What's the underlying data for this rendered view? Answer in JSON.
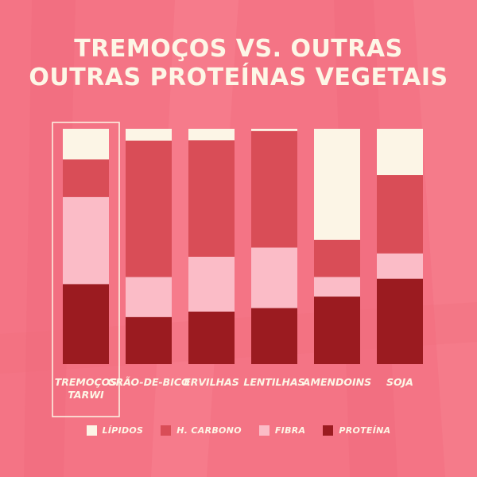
{
  "title": {
    "line1": "TREMOÇOS VS. OUTRAS",
    "line2": "OUTRAS PROTEÍNAS VEGETAIS"
  },
  "colors": {
    "background": "#f47485",
    "lipidos": "#fcf5e6",
    "h_carbono": "#d94d57",
    "fibra": "#fbbcc7",
    "proteina": "#9b1b20",
    "text": "#fdf6e6"
  },
  "legend": [
    {
      "key": "lipidos",
      "label": "LÍPIDOS",
      "color": "#fcf5e6"
    },
    {
      "key": "h_carbono",
      "label": "H. CARBONO",
      "color": "#d94d57"
    },
    {
      "key": "fibra",
      "label": "FIBRA",
      "color": "#fbbcc7"
    },
    {
      "key": "proteina",
      "label": "PROTEÍNA",
      "color": "#9b1b20"
    }
  ],
  "chart_data": {
    "type": "bar",
    "stacked": true,
    "normalized": true,
    "title": "TREMOÇOS VS. OUTRAS OUTRAS PROTEÍNAS VEGETAIS",
    "categories": [
      [
        "TREMOÇOS",
        "TARWI"
      ],
      [
        "GRÃO-DE-BICO"
      ],
      [
        "ERVILHAS"
      ],
      [
        "LENTILHAS"
      ],
      [
        "AMENDOINS"
      ],
      [
        "SOJA"
      ]
    ],
    "highlighted_category": 0,
    "series": [
      {
        "name": "PROTEÍNA",
        "key": "proteina",
        "color": "#9b1b20",
        "values": [
          34,
          20,
          23,
          25,
          31,
          37
        ]
      },
      {
        "name": "FIBRA",
        "key": "fibra",
        "color": "#fbbcc7",
        "values": [
          37,
          17,
          24,
          27,
          9,
          11
        ]
      },
      {
        "name": "H. CARBONO",
        "key": "h_carbono",
        "color": "#d94d57",
        "values": [
          16,
          58,
          51,
          52,
          17,
          34
        ]
      },
      {
        "name": "LÍPIDOS",
        "key": "lipidos",
        "color": "#fcf5e6",
        "values": [
          13,
          5,
          5,
          1,
          51,
          20
        ]
      }
    ],
    "xlabel": "",
    "ylabel": "",
    "grid": false,
    "legend_position": "bottom"
  }
}
